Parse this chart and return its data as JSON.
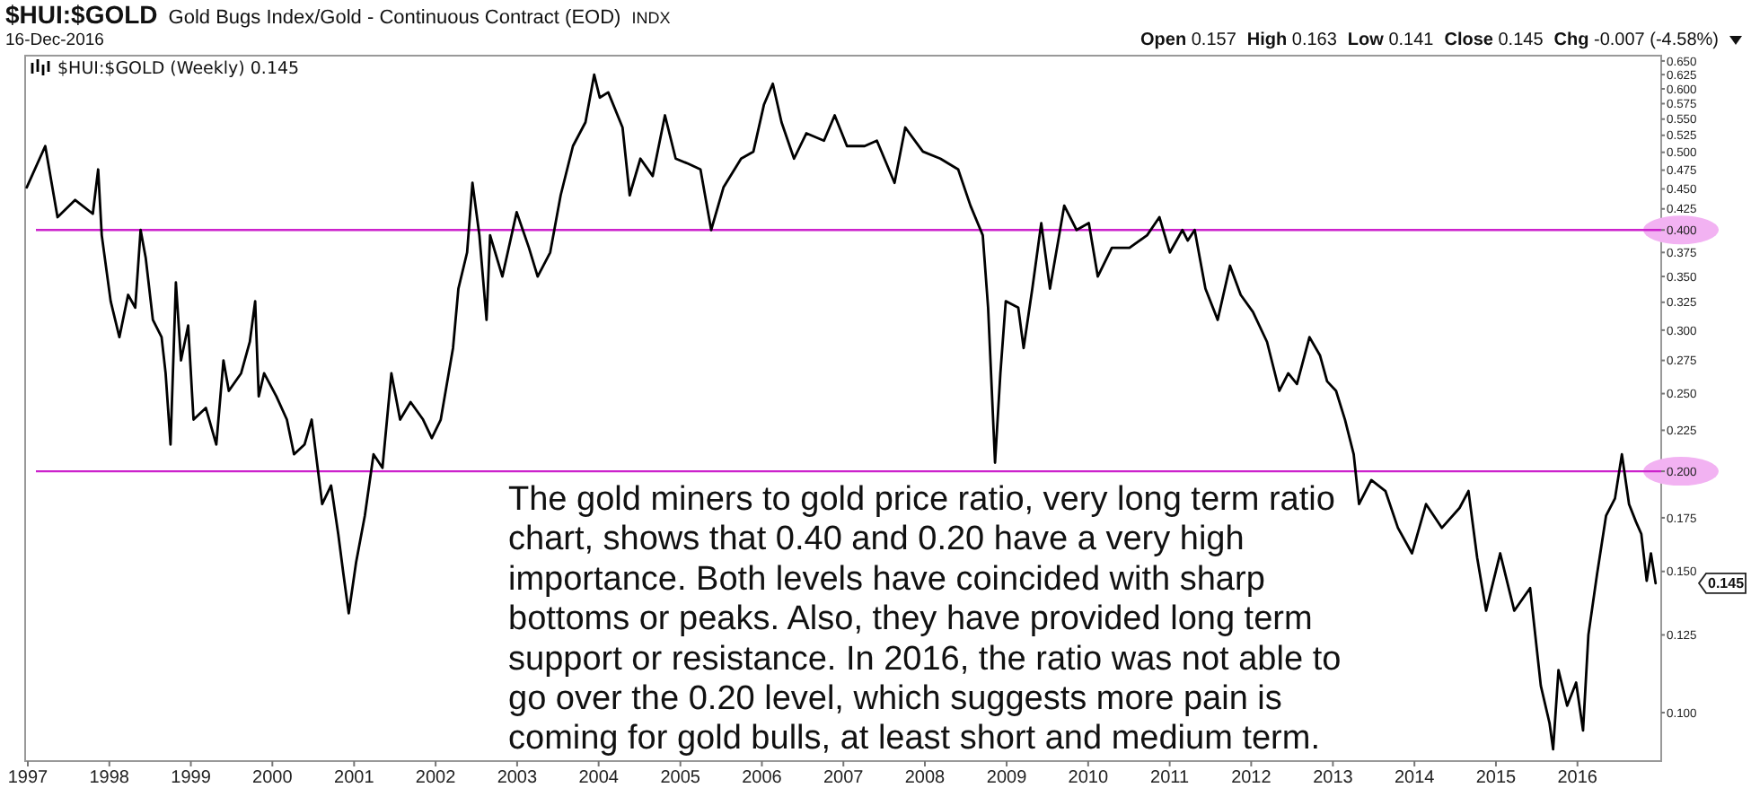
{
  "chart_data": {
    "type": "line",
    "title": "$HUI:$GOLD",
    "subtitle": "Gold Bugs Index/Gold - Continuous Contract (EOD)",
    "annotations": [
      "INDX",
      "16-Dec-2016",
      "Open 0.157",
      "High 0.163",
      "Low 0.141",
      "Close 0.145",
      "Chg -0.007 (-4.58%)",
      "The gold miners to gold price ratio, very long term ratio\nchart, shows that 0.40 and 0.20 have a very high\nimportance. Both levels have coincided with sharp\nbottoms or peaks. Also, they have provided long term\nsupport or resistance. In 2016, the ratio was not able to\ngo over the 0.20 level, which suggests more pain is\ncoming for gold bulls, at least short and medium term.",
      "0.145"
    ],
    "x": [
      "1996-12-27",
      "1997-03-20",
      "1997-05-14",
      "1997-08-01",
      "1997-10-19",
      "1997-11-12",
      "1997-11-28",
      "1998-01-07",
      "1998-02-15",
      "1998-03-26",
      "1998-04-27",
      "1998-05-21",
      "1998-06-13",
      "1998-07-15",
      "1998-08-23",
      "1998-09-10",
      "1998-10-02",
      "1998-10-26",
      "1998-11-18",
      "1998-12-20",
      "1999-01-13",
      "1999-03-09",
      "1999-04-25",
      "1999-05-27",
      "1999-06-20",
      "1999-08-14",
      "1999-09-22",
      "1999-10-16",
      "1999-11-01",
      "1999-11-25",
      "2000-01-19",
      "2000-03-06",
      "2000-04-07",
      "2000-05-24",
      "2000-06-25",
      "2000-08-11",
      "2000-09-20",
      "2000-10-22",
      "2000-11-14",
      "2000-12-08",
      "2001-01-10",
      "2001-02-18",
      "2001-03-29",
      "2001-05-08",
      "2001-06-17",
      "2001-07-26",
      "2001-09-11",
      "2001-11-06",
      "2001-12-15",
      "2002-01-24",
      "2002-03-20",
      "2002-04-13",
      "2002-05-22",
      "2002-06-15",
      "2002-07-16",
      "2002-08-17",
      "2002-09-02",
      "2002-10-27",
      "2002-12-30",
      "2003-02-23",
      "2003-04-03",
      "2003-05-29",
      "2003-07-15",
      "2003-09-08",
      "2003-11-03",
      "2003-12-12",
      "2004-01-06",
      "2004-02-13",
      "2004-04-17",
      "2004-05-19",
      "2004-07-06",
      "2004-08-30",
      "2004-10-24",
      "2004-12-11",
      "2005-02-04",
      "2005-04-01",
      "2005-05-19",
      "2005-07-13",
      "2005-09-30",
      "2005-11-24",
      "2006-01-10",
      "2006-02-19",
      "2006-03-30",
      "2006-05-25",
      "2006-07-19",
      "2006-10-06",
      "2006-11-23",
      "2007-01-17",
      "2007-04-06",
      "2007-05-31",
      "2007-08-18",
      "2007-10-05",
      "2007-12-23",
      "2008-03-10",
      "2008-05-29",
      "2008-07-23",
      "2008-09-16",
      "2008-10-10",
      "2008-11-10",
      "2008-12-04",
      "2008-12-28",
      "2009-02-22",
      "2009-03-18",
      "2009-04-26",
      "2009-06-05",
      "2009-07-14",
      "2009-09-16",
      "2009-11-10",
      "2010-01-04",
      "2010-02-13",
      "2010-04-17",
      "2010-07-05",
      "2010-09-22",
      "2010-11-16",
      "2011-01-02",
      "2011-02-27",
      "2011-03-23",
      "2011-04-23",
      "2011-06-10",
      "2011-08-04",
      "2011-09-28",
      "2011-11-15",
      "2012-01-09",
      "2012-03-12",
      "2012-05-06",
      "2012-06-15",
      "2012-07-24",
      "2012-09-18",
      "2012-11-04",
      "2012-12-06",
      "2013-01-15",
      "2013-02-24",
      "2013-04-04",
      "2013-04-28",
      "2013-06-22",
      "2013-08-24",
      "2013-10-19",
      "2013-12-21",
      "2014-02-22",
      "2014-05-04",
      "2014-07-22",
      "2014-08-31",
      "2014-10-09",
      "2014-11-18",
      "2015-01-20",
      "2015-03-24",
      "2015-06-03",
      "2015-07-21",
      "2015-08-29",
      "2015-09-14",
      "2015-10-08",
      "2015-11-16",
      "2015-12-26",
      "2016-01-26",
      "2016-02-19",
      "2016-03-29",
      "2016-05-08",
      "2016-06-17",
      "2016-07-18",
      "2016-08-19",
      "2016-09-19",
      "2016-10-13",
      "2016-11-06",
      "2016-11-25",
      "2016-12-16"
    ],
    "series": [
      {
        "name": "$HUI:$GOLD (Weekly) 0.145",
        "color": "#000000",
        "values": [
          0.452,
          0.509,
          0.415,
          0.436,
          0.419,
          0.476,
          0.394,
          0.326,
          0.294,
          0.332,
          0.32,
          0.4,
          0.369,
          0.309,
          0.294,
          0.265,
          0.216,
          0.344,
          0.275,
          0.304,
          0.232,
          0.24,
          0.216,
          0.275,
          0.252,
          0.265,
          0.29,
          0.326,
          0.248,
          0.265,
          0.248,
          0.232,
          0.21,
          0.216,
          0.232,
          0.182,
          0.192,
          0.167,
          0.149,
          0.133,
          0.154,
          0.176,
          0.21,
          0.202,
          0.265,
          0.232,
          0.244,
          0.232,
          0.22,
          0.232,
          0.285,
          0.338,
          0.375,
          0.458,
          0.394,
          0.309,
          0.394,
          0.35,
          0.421,
          0.38,
          0.35,
          0.375,
          0.442,
          0.509,
          0.545,
          0.625,
          0.585,
          0.594,
          0.537,
          0.442,
          0.491,
          0.467,
          0.556,
          0.491,
          0.484,
          0.476,
          0.4,
          0.452,
          0.491,
          0.501,
          0.573,
          0.609,
          0.545,
          0.491,
          0.528,
          0.517,
          0.556,
          0.509,
          0.509,
          0.517,
          0.458,
          0.537,
          0.501,
          0.491,
          0.476,
          0.429,
          0.394,
          0.32,
          0.205,
          0.265,
          0.326,
          0.32,
          0.285,
          0.338,
          0.408,
          0.338,
          0.429,
          0.4,
          0.408,
          0.35,
          0.38,
          0.38,
          0.394,
          0.415,
          0.375,
          0.4,
          0.388,
          0.4,
          0.338,
          0.309,
          0.361,
          0.332,
          0.316,
          0.29,
          0.252,
          0.265,
          0.257,
          0.294,
          0.279,
          0.259,
          0.252,
          0.232,
          0.21,
          0.182,
          0.195,
          0.189,
          0.17,
          0.158,
          0.182,
          0.17,
          0.18,
          0.189,
          0.156,
          0.134,
          0.158,
          0.134,
          0.143,
          0.108,
          0.097,
          0.09,
          0.113,
          0.102,
          0.109,
          0.095,
          0.125,
          0.149,
          0.176,
          0.185,
          0.21,
          0.182,
          0.173,
          0.167,
          0.146,
          0.158,
          0.145
        ]
      }
    ],
    "xlim": [
      "1996-12-20",
      "2017-01-10"
    ],
    "xticks": [
      "1997",
      "1998",
      "1999",
      "2000",
      "2001",
      "2002",
      "2003",
      "2004",
      "2005",
      "2006",
      "2007",
      "2008",
      "2009",
      "2010",
      "2011",
      "2012",
      "2013",
      "2014",
      "2015",
      "2016"
    ],
    "ylim": [
      0.087,
      0.66
    ],
    "yticks": [
      {
        "value": 0.1,
        "label": "0.100"
      },
      {
        "value": 0.125,
        "label": "0.125"
      },
      {
        "value": 0.15,
        "label": "0.150"
      },
      {
        "value": 0.175,
        "label": "0.175"
      },
      {
        "value": 0.2,
        "label": "0.200"
      },
      {
        "value": 0.225,
        "label": "0.225"
      },
      {
        "value": 0.25,
        "label": "0.250"
      },
      {
        "value": 0.275,
        "label": "0.275"
      },
      {
        "value": 0.3,
        "label": "0.300"
      },
      {
        "value": 0.325,
        "label": "0.325"
      },
      {
        "value": 0.35,
        "label": "0.350"
      },
      {
        "value": 0.375,
        "label": "0.375"
      },
      {
        "value": 0.4,
        "label": "0.400"
      },
      {
        "value": 0.425,
        "label": "0.425"
      },
      {
        "value": 0.45,
        "label": "0.450"
      },
      {
        "value": 0.475,
        "label": "0.475"
      },
      {
        "value": 0.5,
        "label": "0.500"
      },
      {
        "value": 0.525,
        "label": "0.525"
      },
      {
        "value": 0.55,
        "label": "0.550"
      },
      {
        "value": 0.575,
        "label": "0.575"
      },
      {
        "value": 0.6,
        "label": "0.600"
      },
      {
        "value": 0.625,
        "label": "0.625"
      },
      {
        "value": 0.65,
        "label": "0.650"
      }
    ],
    "log": "y",
    "legend": "top left",
    "ref_lines": [
      {
        "axis": "y",
        "value": 0.4,
        "color": "#cc22cc"
      },
      {
        "axis": "y",
        "value": 0.2,
        "color": "#cc22cc"
      }
    ]
  }
}
